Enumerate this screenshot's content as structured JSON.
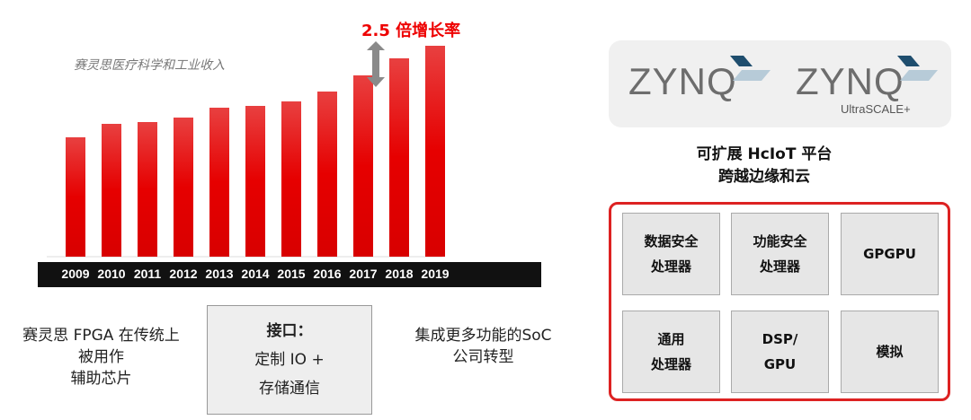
{
  "chart_data": {
    "type": "bar",
    "title": "赛灵思医疗科学和工业收入",
    "annotation": "2.5 倍增长率",
    "categories": [
      "2009",
      "2010",
      "2011",
      "2012",
      "2013",
      "2014",
      "2015",
      "2016",
      "2017",
      "2018",
      "2019"
    ],
    "values": [
      133,
      148,
      150,
      155,
      166,
      168,
      173,
      184,
      202,
      221,
      235
    ],
    "bar_color": "#e60000",
    "year_band_color": "#111111"
  },
  "left_text": {
    "line1": "赛灵思 FPGA 在传统上",
    "line2": "被用作",
    "line3": "辅助芯片"
  },
  "interface_box": {
    "title": "接口：",
    "line1": "定制 IO +",
    "line2": "存储通信"
  },
  "soc_text": {
    "line1": "集成更多功能的SoC",
    "line2": "公司转型"
  },
  "logos": {
    "zynq1": "ZYNQ",
    "zynq2": "ZYNQ",
    "ultrascale": "UltraSCALE+"
  },
  "platform": {
    "line1": "可扩展 HcIoT 平台",
    "line2": "跨越边缘和云"
  },
  "blocks": [
    {
      "line1": "数据安全",
      "line2": "处理器"
    },
    {
      "line1": "功能安全",
      "line2": "处理器"
    },
    {
      "line1": "GPGPU",
      "line2": ""
    },
    {
      "line1": "通用",
      "line2": "处理器"
    },
    {
      "line1": "DSP/",
      "line2": "GPU"
    },
    {
      "line1": "模拟",
      "line2": ""
    }
  ],
  "accent": "#dd2222"
}
